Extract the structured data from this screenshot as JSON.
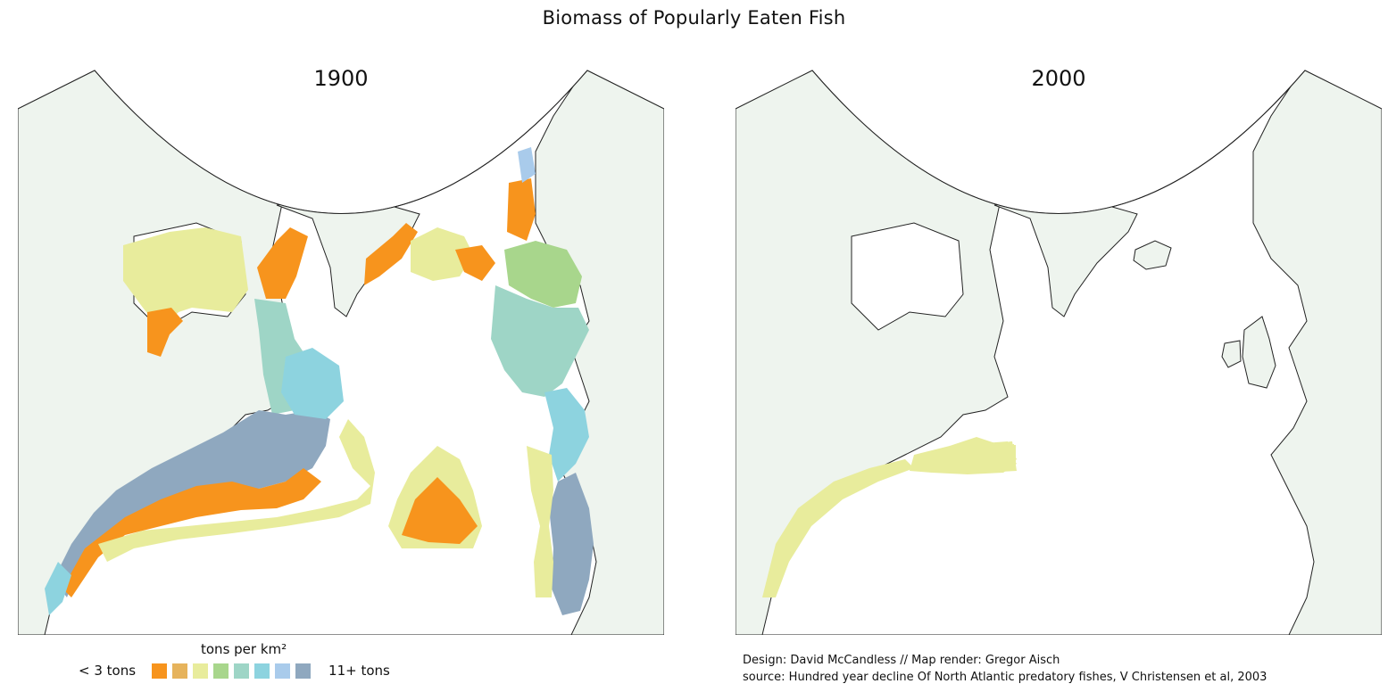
{
  "title": "Biomass of Popularly Eaten Fish",
  "maps": [
    {
      "year": "1900"
    },
    {
      "year": "2000"
    }
  ],
  "legend": {
    "title": "tons per km²",
    "min_label": "< 3 tons",
    "max_label": "11+ tons",
    "colors": [
      "#f7941d",
      "#e6b35c",
      "#e8ec9c",
      "#a8d68c",
      "#9ed5c6",
      "#8dd3df",
      "#a9cbeb",
      "#8fa8bf"
    ]
  },
  "map_colors": {
    "land": "#eef4ee",
    "land_stroke": "#222222",
    "ocean": "#ffffff"
  },
  "credits": {
    "design": "Design: David McCandless // Map render: Gregor Aisch",
    "source": "source: Hundred year decline Of North Atlantic predatory fishes, V Christensen et al, 2003"
  }
}
